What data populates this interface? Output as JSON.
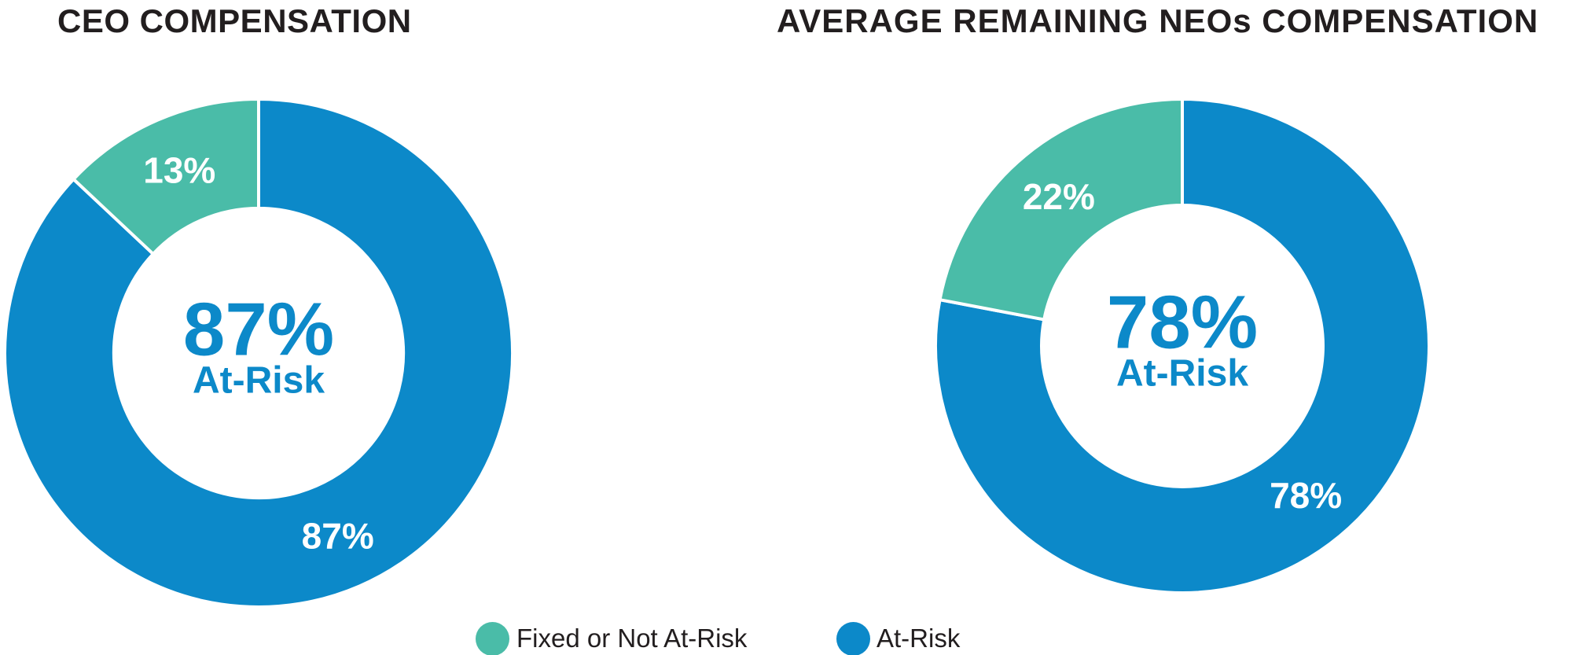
{
  "page": {
    "background": "#FFFFFF"
  },
  "colors": {
    "at_risk_blue": "#0C89C9",
    "fixed_teal": "#4ABCA8",
    "title_text": "#221E1F",
    "slice_label_text": "#FFFFFF",
    "slice_border": "#FFFFFF"
  },
  "chart_data": [
    {
      "type": "pie",
      "subtype": "donut",
      "title": "CEO COMPENSATION",
      "categories": [
        "At-Risk",
        "Fixed or Not At-Risk"
      ],
      "values": [
        87,
        13
      ],
      "slices": [
        {
          "label": "At-Risk",
          "value": 87,
          "data_label": "87%",
          "color": "#0C89C9"
        },
        {
          "label": "Fixed or Not At-Risk",
          "value": 13,
          "data_label": "13%",
          "color": "#4ABCA8"
        }
      ],
      "center_value": "87%",
      "center_caption": "At-Risk",
      "center_text_color": "#0C89C9",
      "start_angle_deg": 0,
      "clockwise": true,
      "hole_ratio": 0.57,
      "slice_border_color": "#FFFFFF",
      "legend_position": "bottom"
    },
    {
      "type": "pie",
      "subtype": "donut",
      "title": "AVERAGE REMAINING NEOs COMPENSATION",
      "categories": [
        "At-Risk",
        "Fixed or Not At-Risk"
      ],
      "values": [
        78,
        22
      ],
      "slices": [
        {
          "label": "At-Risk",
          "value": 78,
          "data_label": "78%",
          "color": "#0C89C9"
        },
        {
          "label": "Fixed or Not At-Risk",
          "value": 22,
          "data_label": "22%",
          "color": "#4ABCA8"
        }
      ],
      "center_value": "78%",
      "center_caption": "At-Risk",
      "center_text_color": "#0C89C9",
      "start_angle_deg": 0,
      "clockwise": true,
      "hole_ratio": 0.57,
      "slice_border_color": "#FFFFFF",
      "legend_position": "bottom"
    }
  ],
  "legend": {
    "items": [
      {
        "label": "Fixed or Not At-Risk",
        "color": "#4ABCA8"
      },
      {
        "label": "At-Risk",
        "color": "#0C89C9"
      }
    ]
  }
}
